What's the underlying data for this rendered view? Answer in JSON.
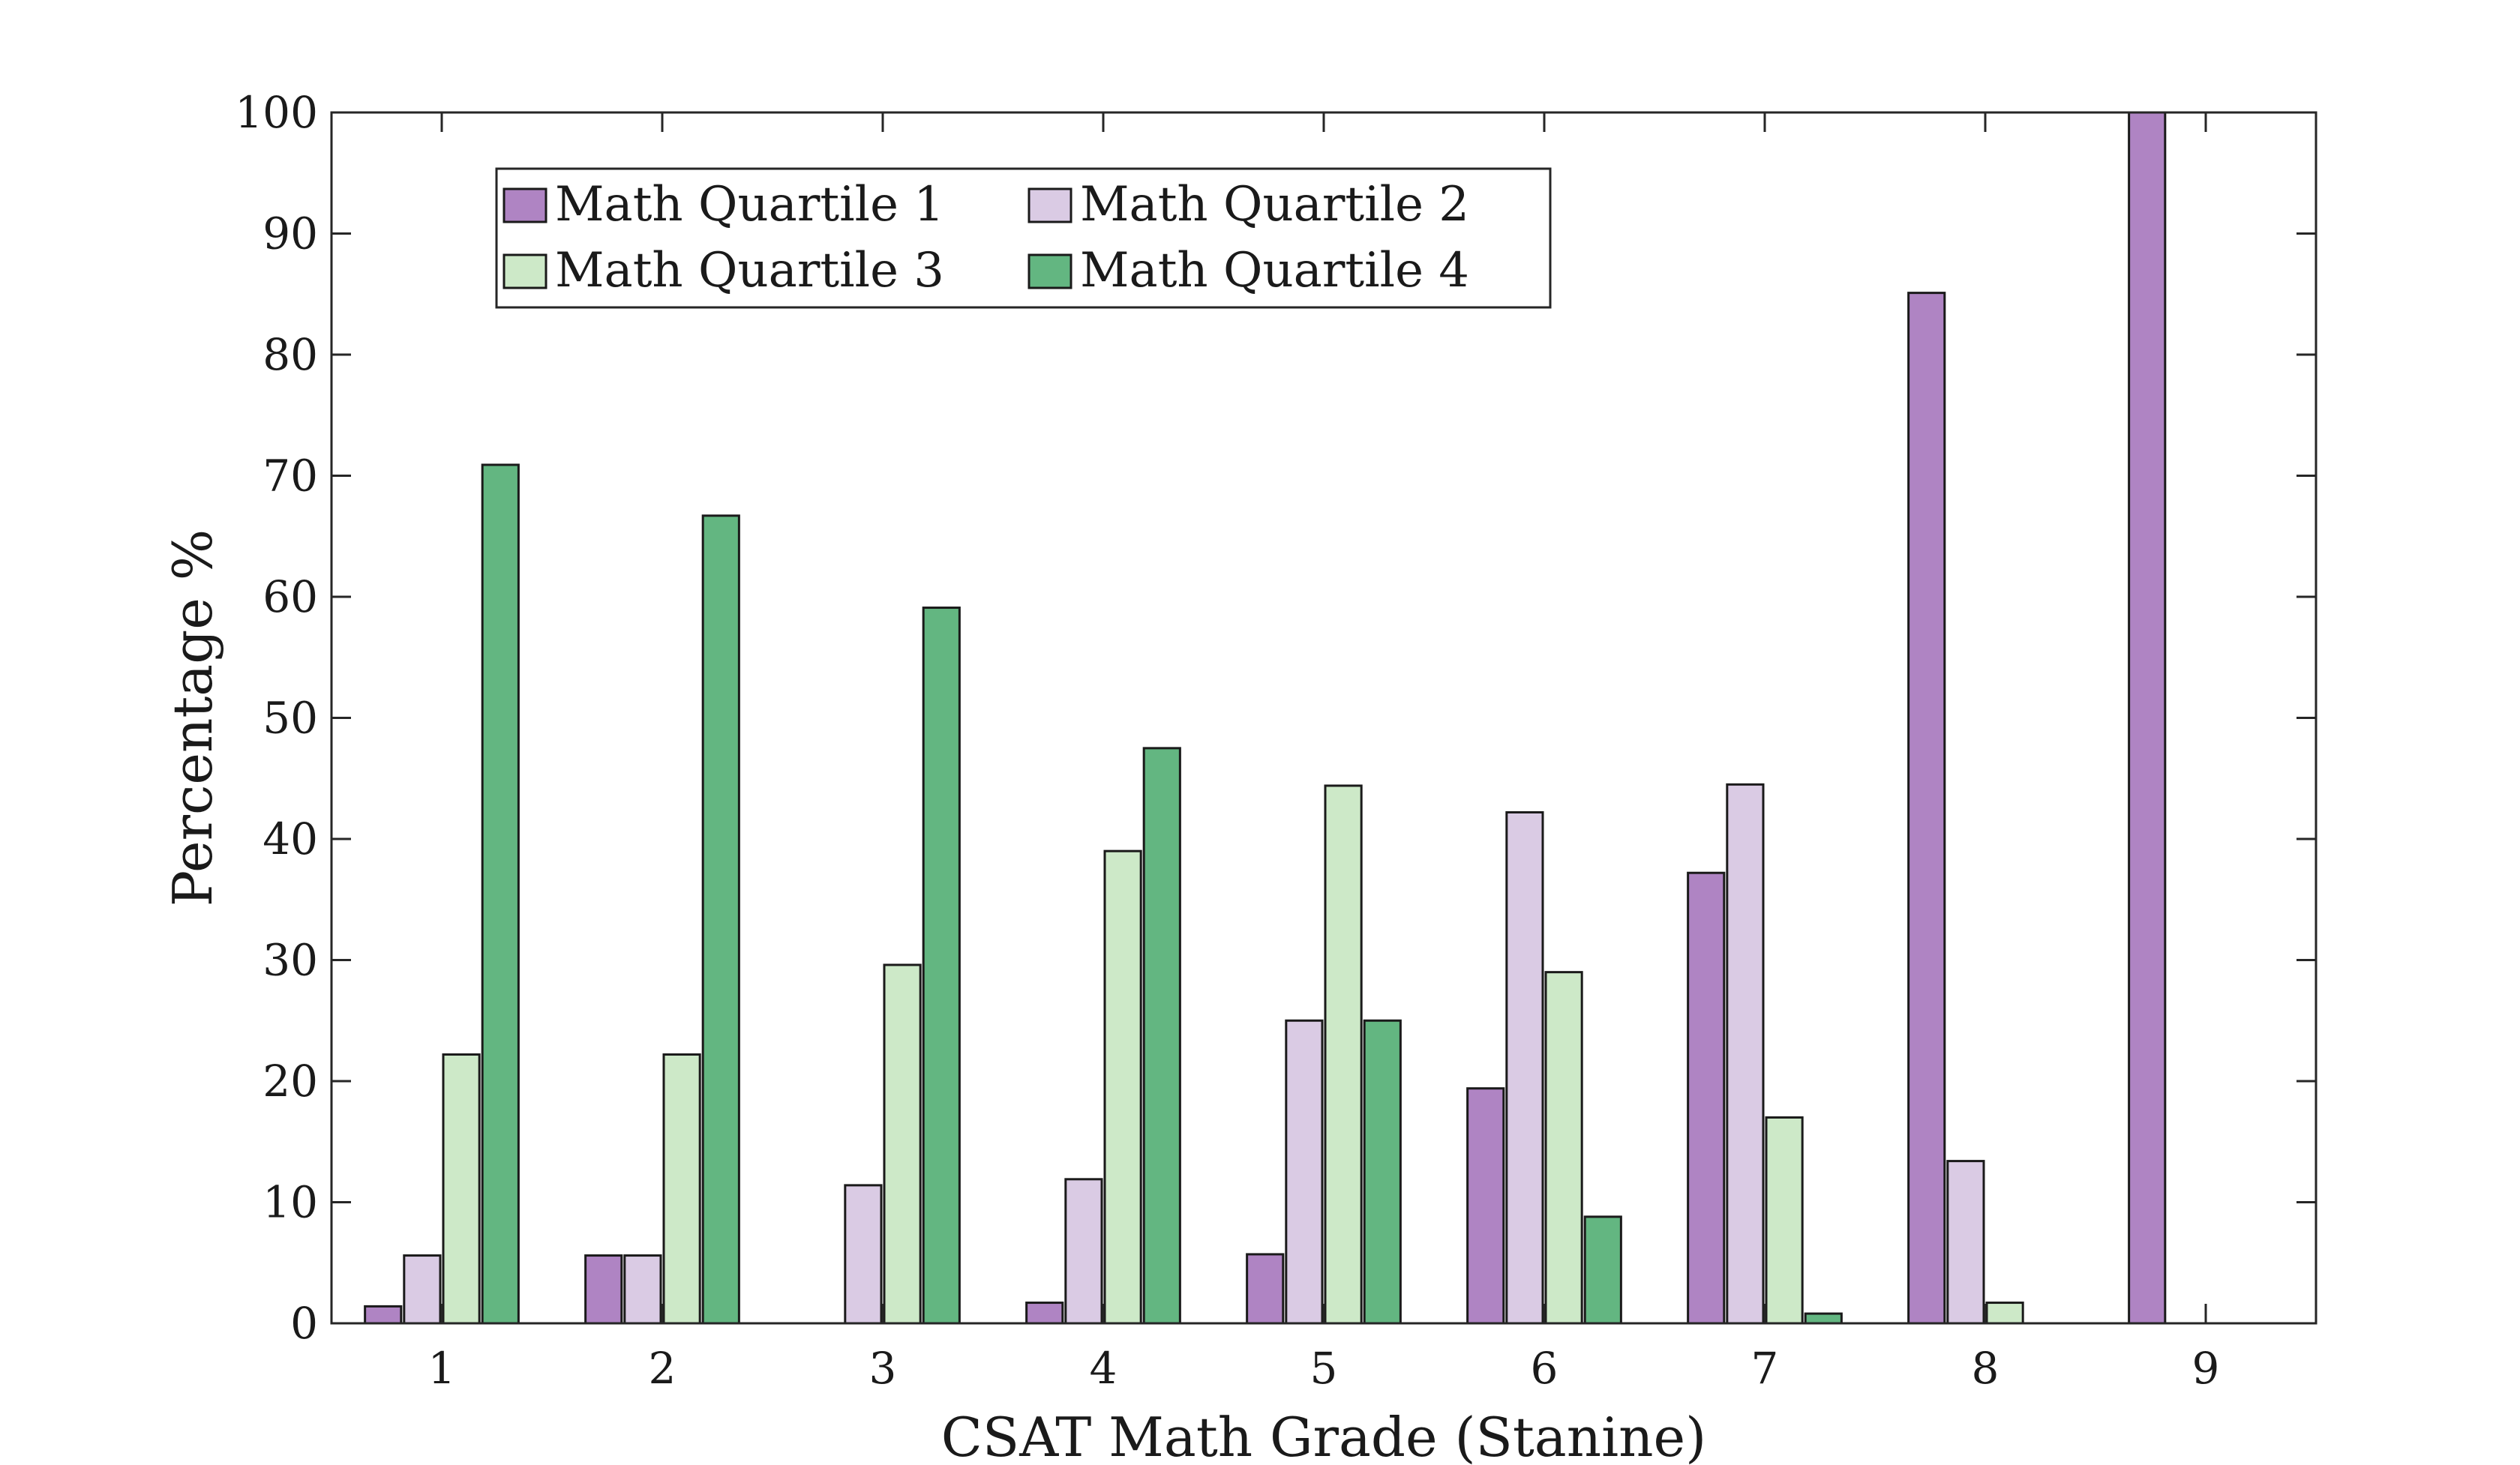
{
  "chart_data": {
    "type": "bar",
    "title": "",
    "xlabel": "CSAT Math Grade (Stanine)",
    "ylabel": "Percentage %",
    "categories": [
      "1",
      "2",
      "3",
      "4",
      "5",
      "6",
      "7",
      "8",
      "9"
    ],
    "ylim": [
      0,
      100
    ],
    "yticks": [
      "0",
      "10",
      "20",
      "30",
      "40",
      "50",
      "60",
      "70",
      "80",
      "90",
      "100"
    ],
    "grid": false,
    "legend_position": "top-left",
    "legend_columns": 2,
    "series": [
      {
        "name": "Math Quartile 1",
        "color": "#af84c3",
        "values": [
          1.4,
          5.6,
          0,
          1.7,
          5.7,
          19.4,
          37.2,
          85.1,
          100
        ]
      },
      {
        "name": "Math Quartile 2",
        "color": "#dacbe4",
        "values": [
          5.6,
          5.6,
          11.4,
          11.9,
          25.0,
          42.2,
          44.5,
          13.4,
          0
        ]
      },
      {
        "name": "Math Quartile 3",
        "color": "#cde9c8",
        "values": [
          22.2,
          22.2,
          29.6,
          39.0,
          44.4,
          29.0,
          17.0,
          1.7,
          0
        ]
      },
      {
        "name": "Math Quartile 4",
        "color": "#63b681",
        "values": [
          70.9,
          66.7,
          59.1,
          47.5,
          25.0,
          8.8,
          0.8,
          0,
          0
        ]
      }
    ]
  }
}
